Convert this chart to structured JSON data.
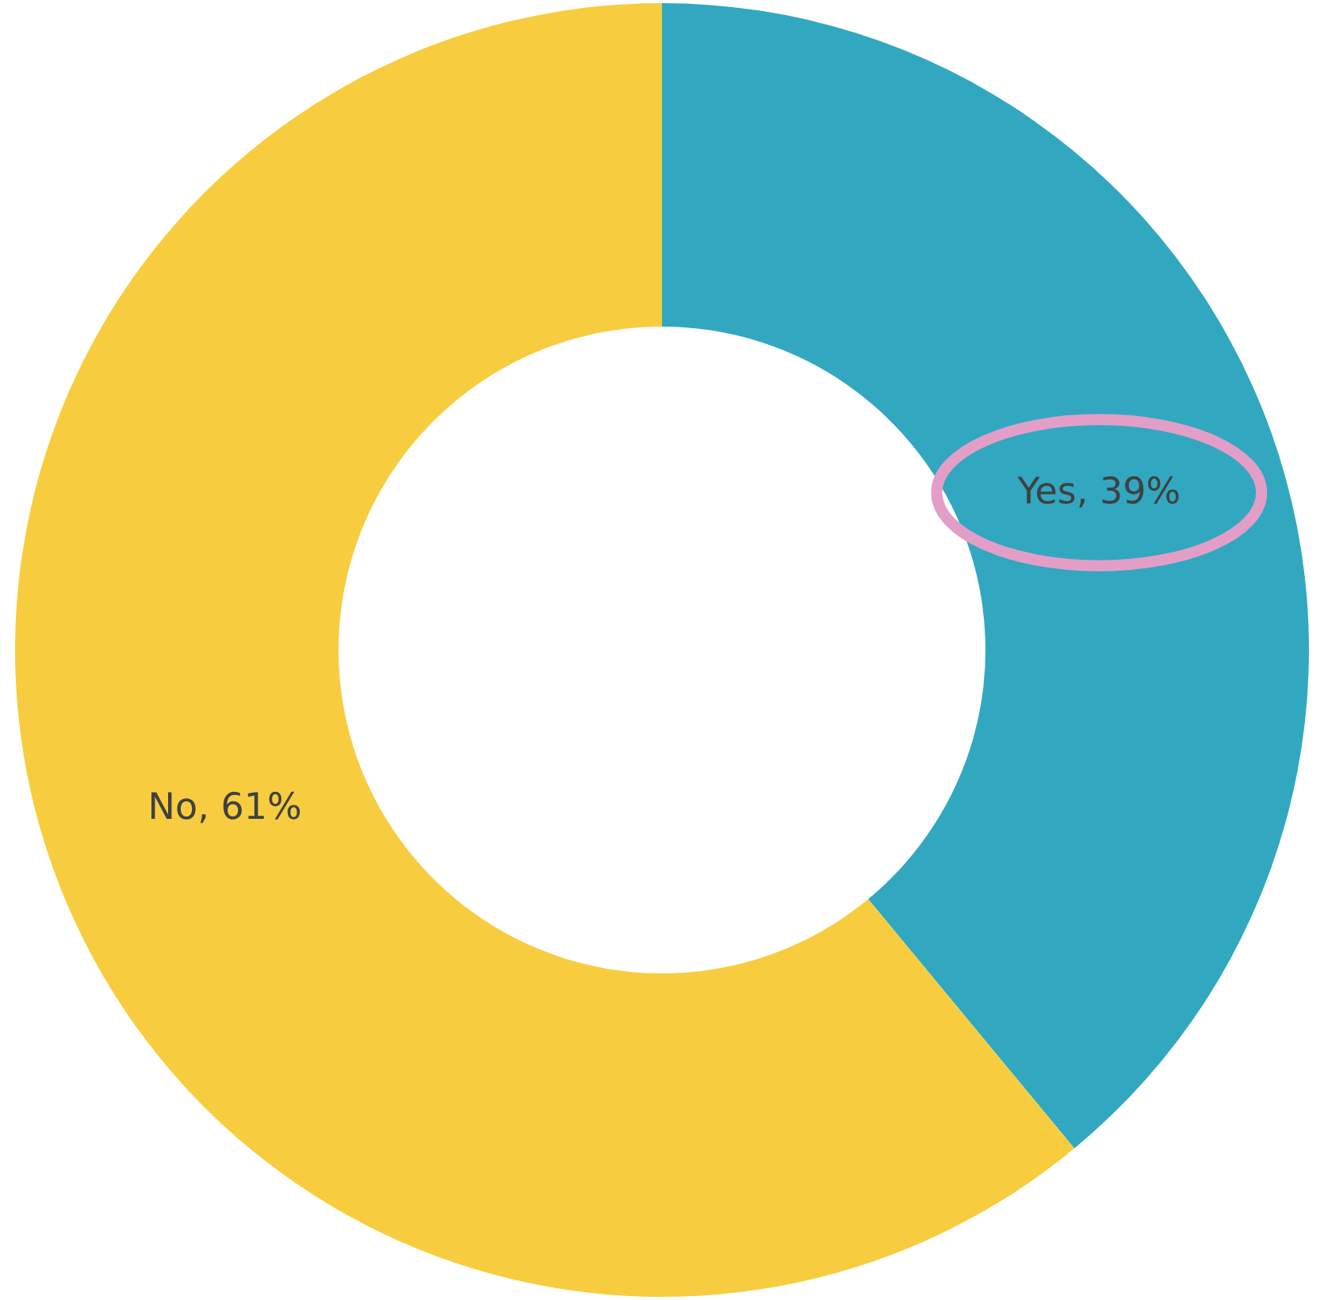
{
  "chart_data": {
    "type": "donut",
    "categories": [
      "Yes",
      "No"
    ],
    "values": [
      39,
      61
    ],
    "colors": [
      "#31a8c0",
      "#f7cd3f"
    ],
    "value_labels": [
      "39%",
      "61%"
    ]
  }
}
